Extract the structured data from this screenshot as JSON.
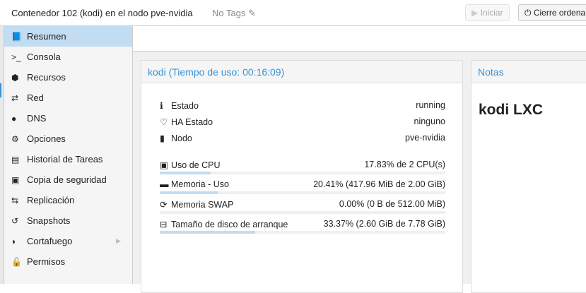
{
  "header": {
    "title": "Contenedor 102 (kodi) en el nodo pve-nvidia",
    "tags": "No Tags",
    "start_label": "Iniciar",
    "shutdown_label": "Cierre ordena"
  },
  "sidebar": {
    "items": [
      {
        "label": "Resumen",
        "icon": "book-icon",
        "glyph": "📘",
        "selected": true
      },
      {
        "label": "Consola",
        "icon": "terminal-icon",
        "glyph": ">_"
      },
      {
        "label": "Recursos",
        "icon": "cube-icon",
        "glyph": "⬢"
      },
      {
        "label": "Red",
        "icon": "exchange-icon",
        "glyph": "⇄"
      },
      {
        "label": "DNS",
        "icon": "globe-icon",
        "glyph": "●"
      },
      {
        "label": "Opciones",
        "icon": "gear-icon",
        "glyph": "⚙"
      },
      {
        "label": "Historial de Tareas",
        "icon": "list-icon",
        "glyph": "▤"
      },
      {
        "label": "Copia de seguridad",
        "icon": "floppy-icon",
        "glyph": "▣"
      },
      {
        "label": "Replicación",
        "icon": "retweet-icon",
        "glyph": "⇆"
      },
      {
        "label": "Snapshots",
        "icon": "history-icon",
        "glyph": "↺"
      },
      {
        "label": "Cortafuego",
        "icon": "shield-icon",
        "glyph": "◗",
        "has_submenu": true
      },
      {
        "label": "Permisos",
        "icon": "unlock-icon",
        "glyph": "🔓"
      }
    ]
  },
  "status": {
    "title": "kodi (Tiempo de uso: 00:16:09)",
    "info": [
      {
        "label": "Estado",
        "value": "running",
        "icon": "info-icon",
        "glyph": "ℹ"
      },
      {
        "label": "HA Estado",
        "value": "ninguno",
        "icon": "heartbeat-icon",
        "glyph": "♡"
      },
      {
        "label": "Nodo",
        "value": "pve-nvidia",
        "icon": "building-icon",
        "glyph": "▮"
      }
    ],
    "usage": [
      {
        "label": "Uso de CPU",
        "value": "17.83% de 2 CPU(s)",
        "percent": 17.83,
        "icon": "cpu-icon",
        "glyph": "▣"
      },
      {
        "label": "Memoria - Uso",
        "value": "20.41% (417.96 MiB de 2.00 GiB)",
        "percent": 20.41,
        "icon": "memory-icon",
        "glyph": "▬"
      },
      {
        "label": "Memoria SWAP",
        "value": "0.00% (0 B de 512.00 MiB)",
        "percent": 0,
        "icon": "refresh-icon",
        "glyph": "⟳"
      },
      {
        "label": "Tamaño de disco de arranque",
        "value": "33.37% (2.60 GiB de 7.78 GiB)",
        "percent": 33.37,
        "icon": "hdd-icon",
        "glyph": "⊟"
      }
    ]
  },
  "notes": {
    "title": "Notas",
    "content": "kodi LXC"
  }
}
